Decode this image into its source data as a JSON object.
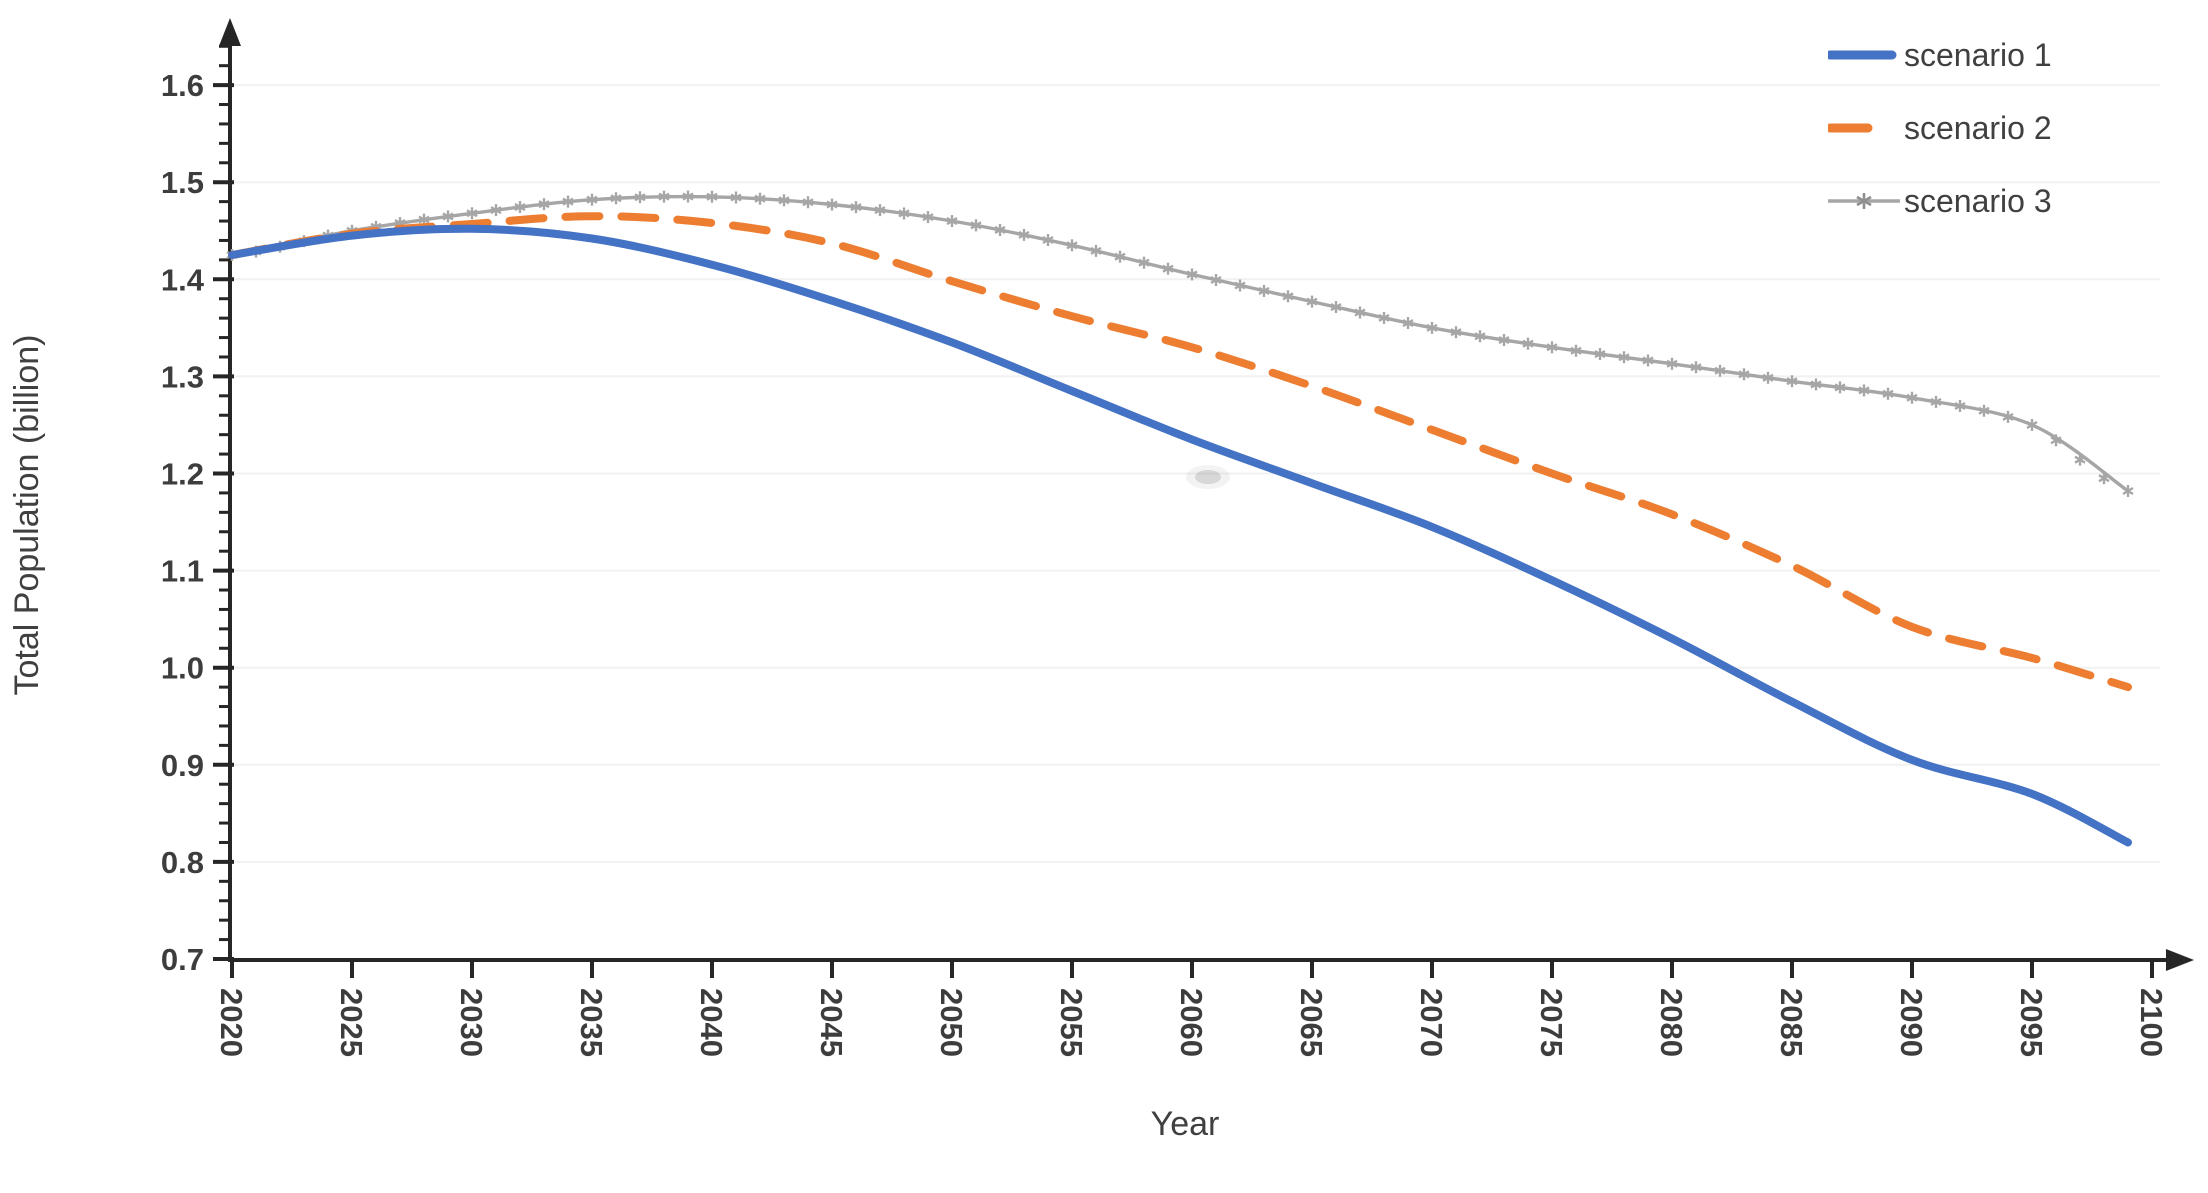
{
  "chart_data": {
    "type": "line",
    "title": "",
    "xlabel": "Year",
    "ylabel": "Total Population (billion)",
    "xlim": [
      2020,
      2100
    ],
    "ylim": [
      0.7,
      1.6
    ],
    "x_tick_step": 5,
    "y_tick_step": 0.1,
    "y_minor_tick_step": 0.02,
    "grid": "faint-horizontal-major",
    "legend_position": "top-right",
    "x": [
      2020,
      2025,
      2030,
      2035,
      2040,
      2045,
      2050,
      2055,
      2060,
      2065,
      2070,
      2075,
      2080,
      2085,
      2090,
      2095,
      2099
    ],
    "series": [
      {
        "name": "scenario 3",
        "color": "#a6a6a6",
        "line_style": "solid",
        "line_width": "thin",
        "marker": "star",
        "marker_interval_years": 1,
        "values": [
          1.425,
          1.45,
          1.468,
          1.482,
          1.485,
          1.477,
          1.46,
          1.435,
          1.405,
          1.377,
          1.35,
          1.33,
          1.313,
          1.295,
          1.278,
          1.25,
          1.182
        ]
      },
      {
        "name": "scenario 2",
        "color": "#ed7d31",
        "line_style": "dashed",
        "line_width": "thick",
        "marker": "none",
        "values": [
          1.425,
          1.447,
          1.457,
          1.465,
          1.458,
          1.437,
          1.398,
          1.362,
          1.33,
          1.29,
          1.245,
          1.2,
          1.158,
          1.105,
          1.042,
          1.01,
          0.98
        ]
      },
      {
        "name": "scenario 1",
        "color": "#4472c4",
        "line_style": "solid",
        "line_width": "thick",
        "marker": "none",
        "values": [
          1.425,
          1.445,
          1.452,
          1.442,
          1.415,
          1.378,
          1.335,
          1.285,
          1.235,
          1.19,
          1.145,
          1.09,
          1.03,
          0.965,
          0.905,
          0.87,
          0.82
        ]
      }
    ]
  },
  "axes": {
    "x_title": "Year",
    "y_title": "Total Population (billion)",
    "x_ticks": [
      "2020",
      "2025",
      "2030",
      "2035",
      "2040",
      "2045",
      "2050",
      "2055",
      "2060",
      "2065",
      "2070",
      "2075",
      "2080",
      "2085",
      "2090",
      "2095",
      "2100"
    ],
    "y_ticks": [
      "0.7",
      "0.8",
      "0.9",
      "1.0",
      "1.1",
      "1.2",
      "1.3",
      "1.4",
      "1.5",
      "1.6"
    ],
    "axis_color": "#262626",
    "label_color": "#3d3d3d",
    "grid_color": "#f1f1f1"
  },
  "legend": {
    "items": [
      {
        "label": "scenario 1",
        "color": "#4472c4",
        "sample": "thick-solid-line"
      },
      {
        "label": "scenario 2",
        "color": "#ed7d31",
        "sample": "short-thick-dash"
      },
      {
        "label": "scenario 3",
        "color": "#a6a6a6",
        "sample": "thin-line-with-star-marker"
      }
    ]
  }
}
